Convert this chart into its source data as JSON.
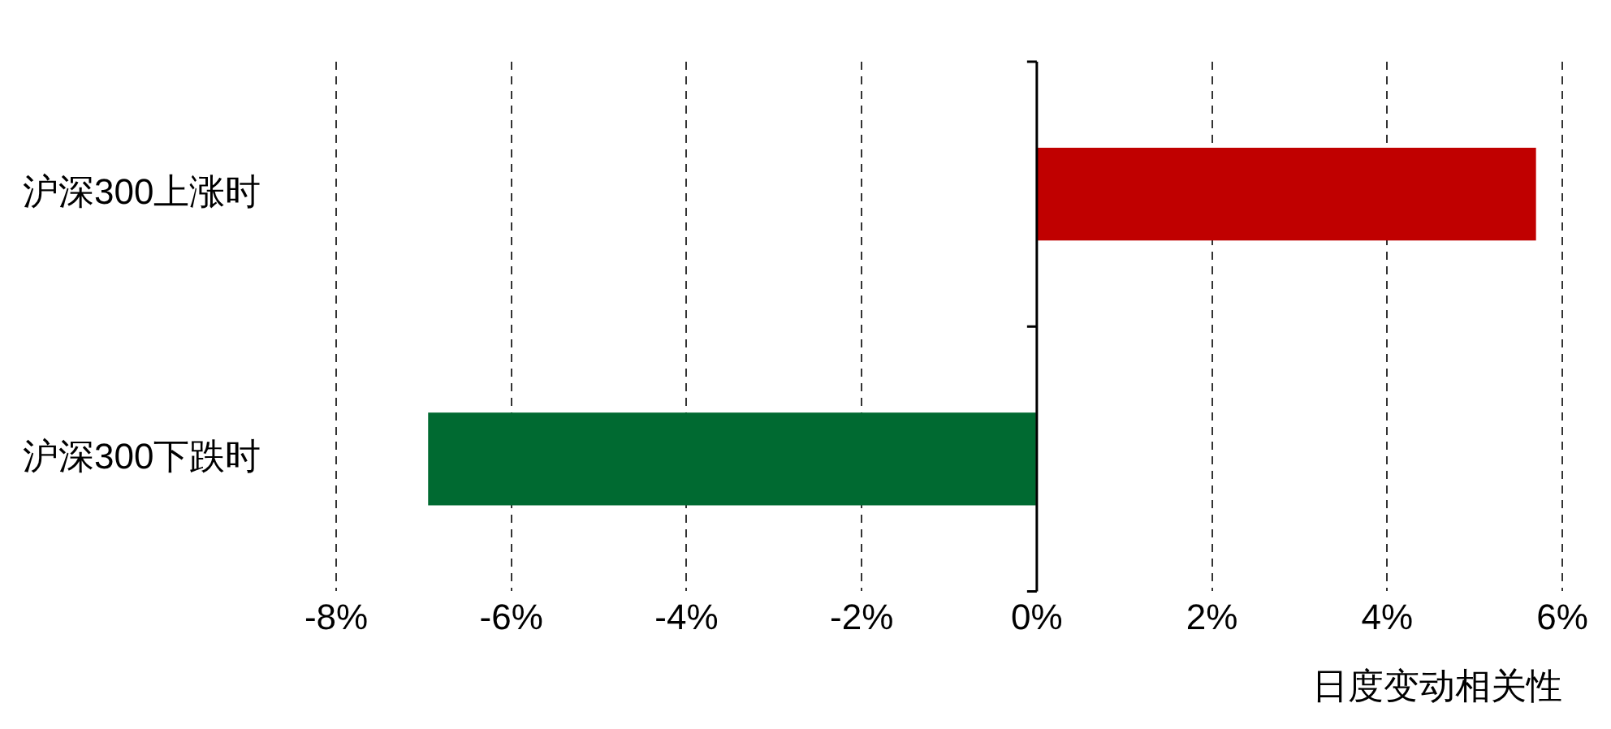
{
  "chart_data": {
    "type": "bar",
    "orientation": "horizontal",
    "categories": [
      "沪深300上涨时",
      "沪深300下跌时"
    ],
    "values": [
      5.7,
      -6.95
    ],
    "colors": [
      "#c00000",
      "#006a31"
    ],
    "xlim": [
      -8,
      6
    ],
    "xticks": [
      {
        "value": -8,
        "label": "-8%"
      },
      {
        "value": -6,
        "label": "-6%"
      },
      {
        "value": -4,
        "label": "-4%"
      },
      {
        "value": -2,
        "label": "-2%"
      },
      {
        "value": 0,
        "label": "0%"
      },
      {
        "value": 2,
        "label": "2%"
      },
      {
        "value": 4,
        "label": "4%"
      },
      {
        "value": 6,
        "label": "6%"
      }
    ],
    "xlabel": "日度变动相关性",
    "grid": "x",
    "legend": false
  }
}
